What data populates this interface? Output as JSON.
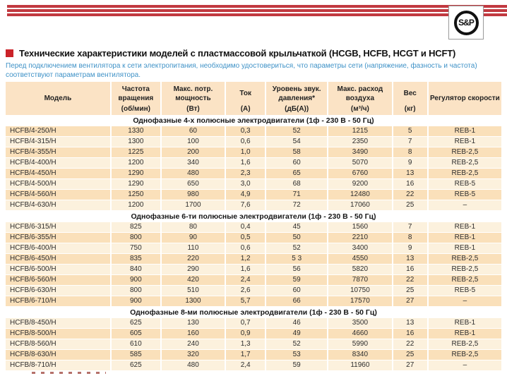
{
  "brand": {
    "logo_text": "S&P"
  },
  "title": "Технические характеристики моделей с пластмассовой крыльчаткой (HCGB, HCFB, HCGT и HCFT)",
  "note": "Перед подключением вентилятора к сети электропитания, необходимо удостовериться, что параметры сети (напряжение, фазность и частота) соответствуют параметрам вентилятора.",
  "table": {
    "columns": [
      {
        "name": "Модель",
        "unit": ""
      },
      {
        "name": "Частота вращения",
        "unit": "(об/мин)"
      },
      {
        "name": "Макс. потр. мощность",
        "unit": "(Вт)"
      },
      {
        "name": "Ток",
        "unit": "(А)"
      },
      {
        "name": "Уровень звук. давления*",
        "unit": "(дБ(А))"
      },
      {
        "name": "Макс. расход воздуха",
        "unit": "(м³/ч)"
      },
      {
        "name": "Вес",
        "unit": "(кг)"
      },
      {
        "name": "Регулятор скорости",
        "unit": ""
      }
    ],
    "sections": [
      {
        "title": "Однофазные 4-х полюсные электродвигатели (1ф - 230 В - 50 Гц)",
        "first_row_dark": true,
        "rows": [
          [
            "HCFB/4-250/H",
            "1330",
            "60",
            "0,3",
            "52",
            "1215",
            "5",
            "REB-1"
          ],
          [
            "HCFB/4-315/H",
            "1300",
            "100",
            "0,6",
            "54",
            "2350",
            "7",
            "REB-1"
          ],
          [
            "HCFB/4-355/H",
            "1225",
            "200",
            "1,0",
            "58",
            "3490",
            "8",
            "REB-2,5"
          ],
          [
            "HCFB/4-400/H",
            "1200",
            "340",
            "1,6",
            "60",
            "5070",
            "9",
            "REB-2,5"
          ],
          [
            "HCFB/4-450/H",
            "1290",
            "480",
            "2,3",
            "65",
            "6760",
            "13",
            "REB-2,5"
          ],
          [
            "HCFB/4-500/H",
            "1290",
            "650",
            "3,0",
            "68",
            "9200",
            "16",
            "REB-5"
          ],
          [
            "HCFB/4-560/H",
            "1250",
            "980",
            "4,9",
            "71",
            "12480",
            "22",
            "REB-5"
          ],
          [
            "HCFB/4-630/H",
            "1200",
            "1700",
            "7,6",
            "72",
            "17060",
            "25",
            "–"
          ]
        ]
      },
      {
        "title": "Однофазные 6-ти полюсные электродвигатели (1ф - 230 В - 50 Гц)",
        "first_row_dark": false,
        "rows": [
          [
            "HCFB/6-315/H",
            "825",
            "80",
            "0,4",
            "45",
            "1560",
            "7",
            "REB-1"
          ],
          [
            "HCFB/6-355/H",
            "800",
            "90",
            "0,5",
            "50",
            "2210",
            "8",
            "REB-1"
          ],
          [
            "HCFB/6-400/H",
            "750",
            "110",
            "0,6",
            "52",
            "3400",
            "9",
            "REB-1"
          ],
          [
            "HCFB/6-450/H",
            "835",
            "220",
            "1,2",
            "5 3",
            "4550",
            "13",
            "REB-2,5"
          ],
          [
            "HCFB/6-500/H",
            "840",
            "290",
            "1,6",
            "56",
            "5820",
            "16",
            "REB-2,5"
          ],
          [
            "HCFB/6-560/H",
            "900",
            "420",
            "2,4",
            "59",
            "7870",
            "22",
            "REB-2,5"
          ],
          [
            "HCFB/6-630/H",
            "800",
            "510",
            "2,6",
            "60",
            "10750",
            "25",
            "REB-5"
          ],
          [
            "HCFB/6-710/H",
            "900",
            "1300",
            "5,7",
            "66",
            "17570",
            "27",
            "–"
          ]
        ]
      },
      {
        "title": "Однофазные 8-ми полюсные электродвигатели (1ф - 230 В - 50 Гц)",
        "first_row_dark": false,
        "rows": [
          [
            "HCFB/8-450/H",
            "625",
            "130",
            "0,7",
            "46",
            "3500",
            "13",
            "REB-1"
          ],
          [
            "HCFB/8-500/H",
            "605",
            "160",
            "0,9",
            "49",
            "4660",
            "16",
            "REB-1"
          ],
          [
            "HCFB/8-560/H",
            "610",
            "240",
            "1,3",
            "52",
            "5990",
            "22",
            "REB-2,5"
          ],
          [
            "HCFB/8-630/H",
            "585",
            "320",
            "1,7",
            "53",
            "8340",
            "25",
            "REB-2,5"
          ],
          [
            "HCFB/8-710/H",
            "625",
            "480",
            "2,4",
            "59",
            "11960",
            "27",
            "–"
          ]
        ]
      }
    ]
  },
  "colors": {
    "accent_red": "#C13940",
    "bullet_red": "#CB2329",
    "note_blue": "#3F92C7",
    "header_bg": "#FBE3C5",
    "row_dark": "#FAE0BA",
    "row_light": "#FCF1DD"
  }
}
